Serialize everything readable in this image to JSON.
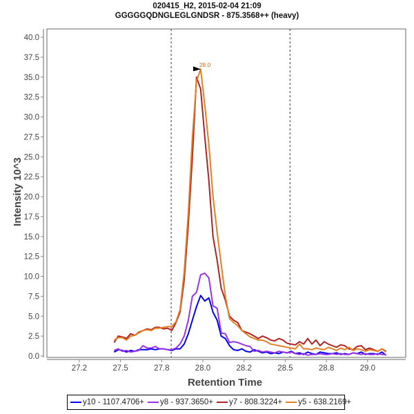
{
  "chart_data": {
    "type": "line",
    "title": "020415_H2, 2015-02-04 21:09",
    "subtitle": "GGGGGQDNGLEGLGNDSR - 875.3568++ (heavy)",
    "xlabel": "Retention Time",
    "ylabel": "Intensity 10^3",
    "xlim": [
      27.03,
      29.2
    ],
    "ylim": [
      0,
      41.5
    ],
    "x_tick_labels": [
      "27.2",
      "27.5",
      "27.8",
      "28.0",
      "28.2",
      "28.5",
      "28.8",
      "29.0"
    ],
    "x_tick_values": [
      27.23,
      27.49,
      27.75,
      28.01,
      28.27,
      28.53,
      28.79,
      29.05
    ],
    "y_tick_labels": [
      "0.0",
      "2.5",
      "5.0",
      "7.5",
      "10.0",
      "12.5",
      "15.0",
      "17.5",
      "20.0",
      "22.5",
      "25.0",
      "27.5",
      "30.0",
      "32.5",
      "35.0",
      "37.5",
      "40.0"
    ],
    "y_tick_values": [
      0,
      2.5,
      5,
      7.5,
      10,
      12.5,
      15,
      17.5,
      20,
      22.5,
      25,
      27.5,
      30,
      32.5,
      35,
      37.5,
      40
    ],
    "grid": false,
    "integration_bounds": [
      27.81,
      28.56
    ],
    "peak_annotation": {
      "label": "28.0",
      "x": 28.01,
      "y": 36.0,
      "color": "#d2691e"
    },
    "legend_position": "bottom",
    "x": [
      27.45,
      27.476,
      27.502,
      27.528,
      27.554,
      27.58,
      27.606,
      27.632,
      27.658,
      27.684,
      27.71,
      27.736,
      27.762,
      27.788,
      27.814,
      27.84,
      27.866,
      27.892,
      27.918,
      27.944,
      27.97,
      27.996,
      28.022,
      28.048,
      28.074,
      28.1,
      28.126,
      28.152,
      28.178,
      28.204,
      28.23,
      28.256,
      28.282,
      28.308,
      28.334,
      28.36,
      28.386,
      28.412,
      28.438,
      28.464,
      28.49,
      28.516,
      28.542,
      28.568,
      28.594,
      28.62,
      28.646,
      28.672,
      28.698,
      28.724,
      28.75,
      28.776,
      28.802,
      28.828,
      28.854,
      28.88,
      28.906,
      28.932,
      28.958,
      28.984,
      29.01,
      29.036,
      29.062,
      29.088,
      29.114,
      29.14,
      29.166
    ],
    "series": [
      {
        "name": "y10 - 1107.4706+",
        "color": "#0000ff",
        "values": [
          0.5,
          0.8,
          0.7,
          0.5,
          0.7,
          0.6,
          0.8,
          0.8,
          0.8,
          0.9,
          0.8,
          0.9,
          0.9,
          0.8,
          0.7,
          0.9,
          0.9,
          1.5,
          2.8,
          4.5,
          6.2,
          7.6,
          6.9,
          7.3,
          5.5,
          4.5,
          2.5,
          2.2,
          1.3,
          0.8,
          0.7,
          0.9,
          0.6,
          0.5,
          0.8,
          0.6,
          0.4,
          0.5,
          0.3,
          0.4,
          0.3,
          0.5,
          0.4,
          0.6,
          0.3,
          0.4,
          0.2,
          0.5,
          0.3,
          0.2,
          0.5,
          0.4,
          0.3,
          0.3,
          0.4,
          0.2,
          0.3,
          0.2,
          0.4,
          0.3,
          0.5,
          0.2,
          0.3,
          0.3,
          0.2,
          0.5,
          0.1
        ]
      },
      {
        "name": "y8 - 937.3650+",
        "color": "#9932e6",
        "values": [
          0.7,
          0.9,
          0.6,
          0.7,
          0.5,
          0.6,
          0.7,
          1.3,
          1.0,
          1.0,
          1.2,
          0.9,
          0.9,
          0.8,
          0.8,
          1.0,
          1.5,
          2.5,
          4.5,
          7.5,
          8.0,
          10.2,
          10.4,
          9.8,
          6.3,
          6.0,
          2.9,
          2.8,
          1.7,
          1.8,
          1.7,
          1.5,
          1.3,
          1.2,
          0.6,
          0.7,
          0.5,
          0.6,
          0.5,
          0.4,
          0.6,
          0.5,
          0.4,
          0.5,
          0.3,
          0.2,
          0.3,
          0.1,
          0.2,
          0.2,
          0.3,
          0.2,
          0.2,
          0.3,
          0.2,
          0.3,
          0.2,
          0.2,
          0.4,
          0.3,
          0.2,
          0.3,
          0.2,
          0.2,
          0.3,
          0.2,
          0.2
        ]
      },
      {
        "name": "y7 - 808.3224+",
        "color": "#b22222",
        "values": [
          1.7,
          2.5,
          2.4,
          2.2,
          2.8,
          2.6,
          3.0,
          3.2,
          3.4,
          3.3,
          3.6,
          3.6,
          3.4,
          3.5,
          3.2,
          4.2,
          5.5,
          9.5,
          16.5,
          25.0,
          35.0,
          33.5,
          27.5,
          22.0,
          15.0,
          12.0,
          8.5,
          7.0,
          5.0,
          4.5,
          4.2,
          3.2,
          3.0,
          2.8,
          2.5,
          2.2,
          2.5,
          2.3,
          2.0,
          1.9,
          2.2,
          2.0,
          1.6,
          1.5,
          1.4,
          1.8,
          1.5,
          2.2,
          1.5,
          2.0,
          1.3,
          1.8,
          1.5,
          1.3,
          1.1,
          1.4,
          1.3,
          0.9,
          0.8,
          1.2,
          1.3,
          0.8,
          1.0,
          0.8,
          0.6,
          0.9,
          0.6
        ]
      },
      {
        "name": "y5 - 638.2169+",
        "color": "#e67e22",
        "values": [
          2.0,
          2.3,
          2.3,
          2.0,
          2.5,
          2.6,
          2.9,
          3.2,
          3.3,
          3.2,
          3.5,
          3.5,
          3.6,
          3.7,
          3.7,
          4.3,
          5.8,
          10.5,
          18.0,
          27.5,
          34.5,
          36.0,
          31.5,
          26.5,
          20.0,
          15.5,
          11.5,
          7.5,
          4.7,
          4.2,
          3.8,
          3.2,
          2.8,
          2.4,
          2.2,
          2.0,
          2.0,
          1.8,
          1.5,
          1.4,
          1.3,
          1.2,
          1.1,
          1.0,
          0.9,
          1.5,
          0.9,
          0.9,
          0.8,
          1.0,
          0.9,
          0.8,
          1.1,
          0.9,
          0.7,
          1.0,
          0.8,
          1.1,
          0.7,
          0.9,
          0.8,
          0.6,
          0.8,
          0.7,
          0.6,
          0.9,
          0.5
        ]
      }
    ]
  }
}
